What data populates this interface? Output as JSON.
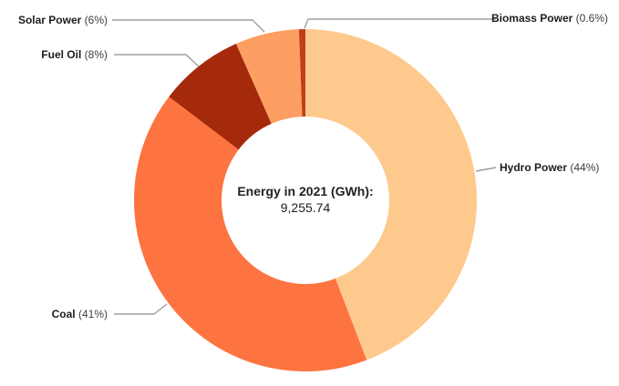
{
  "chart_data": {
    "type": "pie",
    "donut": true,
    "hole_ratio": 0.49,
    "start_angle_deg": 0,
    "direction": "clockwise",
    "title": "",
    "center_label": "Energy in 2021 (GWh):",
    "center_value": "9,255.74",
    "background_color": "#ffffff",
    "leader_line_color": "#9e9e9e",
    "label_color": "#212121",
    "legend_position": "labeled-callouts",
    "slices": [
      {
        "label": "Hydro Power",
        "pct_label": "(44%)",
        "value": 44,
        "color": "#FDC98D"
      },
      {
        "label": "Coal",
        "pct_label": "(41%)",
        "value": 41,
        "color": "#FD7440"
      },
      {
        "label": "Fuel Oil",
        "pct_label": "(8%)",
        "value": 8,
        "color": "#A42A0B"
      },
      {
        "label": "Solar Power",
        "pct_label": "(6%)",
        "value": 6,
        "color": "#FD9E63"
      },
      {
        "label": "Biomass Power",
        "pct_label": "(0.6%)",
        "value": 0.6,
        "color": "#C13E16"
      }
    ]
  }
}
